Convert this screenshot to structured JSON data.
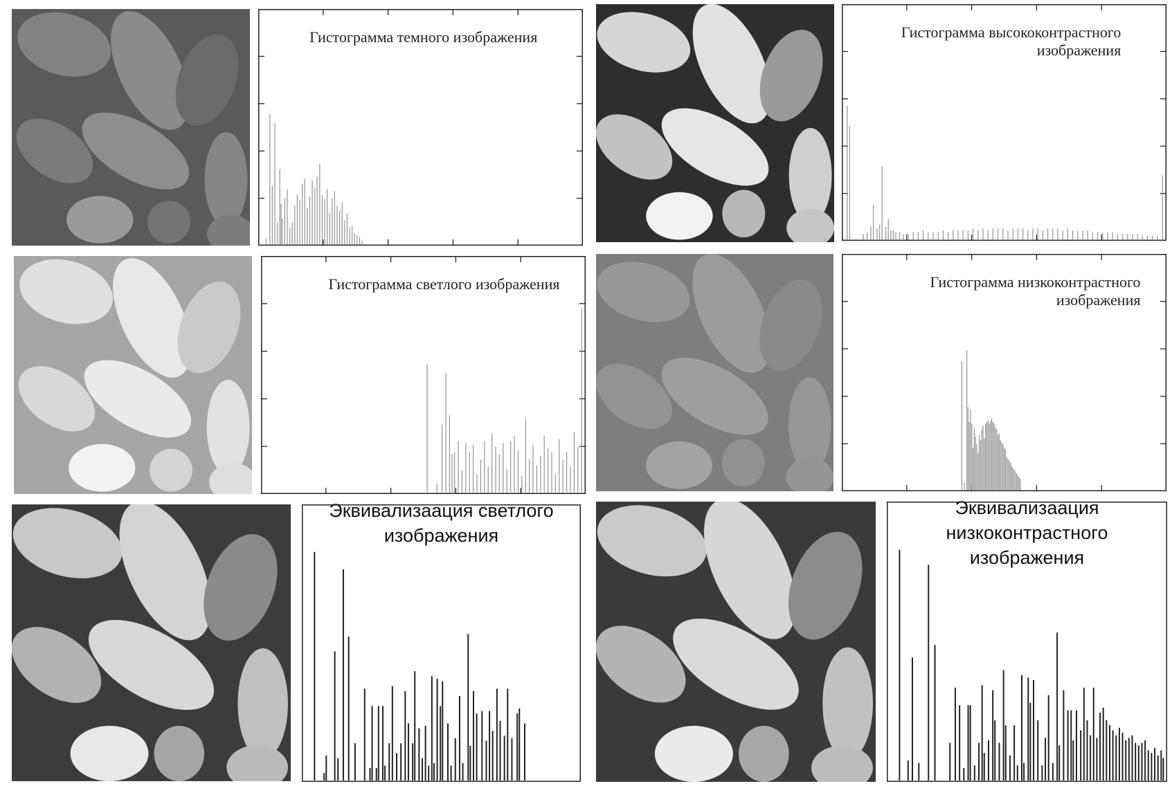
{
  "chart_data": [
    {
      "type": "bar",
      "title": "Гистограмма темного изображения",
      "xlabel": "",
      "ylabel": "",
      "xlim": [
        0,
        255
      ],
      "ylim": [
        0,
        1
      ],
      "tick_count_x": 4,
      "tick_count_y": 4,
      "x": [
        3,
        6,
        8,
        10,
        12,
        14,
        15,
        16,
        18,
        20,
        22,
        24,
        26,
        28,
        30,
        32,
        34,
        36,
        38,
        40,
        42,
        44,
        46,
        48,
        50,
        52,
        54,
        56,
        58,
        60,
        62,
        64,
        66,
        68,
        70,
        72,
        74,
        76,
        78,
        80
      ],
      "values": [
        0.03,
        0.71,
        0.32,
        0.66,
        0.12,
        0.41,
        0.22,
        0.14,
        0.25,
        0.3,
        0.09,
        0.12,
        0.21,
        0.27,
        0.24,
        0.33,
        0.36,
        0.2,
        0.26,
        0.35,
        0.31,
        0.37,
        0.44,
        0.27,
        0.25,
        0.3,
        0.17,
        0.25,
        0.29,
        0.21,
        0.18,
        0.23,
        0.13,
        0.17,
        0.09,
        0.1,
        0.06,
        0.05,
        0.04,
        0.02
      ],
      "color": "#9a9a9a"
    },
    {
      "type": "bar",
      "title": "Гистограмма высококонтрастного изображения",
      "xlabel": "",
      "ylabel": "",
      "xlim": [
        0,
        255
      ],
      "ylim": [
        0,
        1
      ],
      "tick_count_x": 4,
      "tick_count_y": 4,
      "x": [
        1,
        3,
        14,
        17,
        20,
        22,
        25,
        27,
        29,
        32,
        34,
        36,
        38,
        40,
        43,
        46,
        50,
        54,
        58,
        62,
        66,
        70,
        74,
        78,
        82,
        86,
        90,
        94,
        98,
        102,
        106,
        110,
        114,
        118,
        122,
        126,
        130,
        134,
        138,
        142,
        146,
        150,
        154,
        158,
        162,
        166,
        170,
        174,
        178,
        182,
        186,
        190,
        194,
        198,
        202,
        206,
        210,
        214,
        218,
        222,
        226,
        230,
        234,
        238,
        242,
        246,
        250,
        254
      ],
      "values": [
        0.73,
        0.62,
        0.03,
        0.04,
        0.07,
        0.19,
        0.06,
        0.08,
        0.4,
        0.07,
        0.11,
        0.05,
        0.05,
        0.04,
        0.04,
        0.03,
        0.03,
        0.04,
        0.04,
        0.05,
        0.04,
        0.04,
        0.04,
        0.05,
        0.04,
        0.05,
        0.05,
        0.05,
        0.05,
        0.06,
        0.05,
        0.06,
        0.05,
        0.06,
        0.06,
        0.06,
        0.05,
        0.06,
        0.06,
        0.06,
        0.05,
        0.06,
        0.06,
        0.05,
        0.06,
        0.06,
        0.06,
        0.05,
        0.06,
        0.05,
        0.05,
        0.05,
        0.05,
        0.04,
        0.04,
        0.04,
        0.04,
        0.04,
        0.03,
        0.03,
        0.03,
        0.03,
        0.03,
        0.02,
        0.02,
        0.02,
        0.02,
        0.35
      ],
      "color": "#9a9a9a"
    },
    {
      "type": "bar",
      "title": "Гистограмма светлого изображения",
      "xlabel": "",
      "ylabel": "",
      "xlim": [
        0,
        255
      ],
      "ylim": [
        0,
        1
      ],
      "tick_count_x": 4,
      "tick_count_y": 4,
      "x": [
        130,
        138,
        142,
        145,
        148,
        150,
        152,
        155,
        158,
        161,
        164,
        167,
        170,
        173,
        176,
        179,
        182,
        185,
        188,
        191,
        194,
        197,
        200,
        203,
        206,
        209,
        212,
        215,
        218,
        221,
        224,
        227,
        230,
        233,
        236,
        239,
        242,
        245,
        248,
        251,
        254
      ],
      "values": [
        0.7,
        0.05,
        0.37,
        0.65,
        0.42,
        0.21,
        0.22,
        0.28,
        0.12,
        0.27,
        0.22,
        0.26,
        0.1,
        0.18,
        0.28,
        0.14,
        0.32,
        0.25,
        0.21,
        0.27,
        0.13,
        0.28,
        0.31,
        0.23,
        0.09,
        0.4,
        0.18,
        0.26,
        0.15,
        0.2,
        0.31,
        0.24,
        0.22,
        0.1,
        0.29,
        0.18,
        0.22,
        0.14,
        0.33,
        0.25,
        1.0
      ],
      "color": "#9a9a9a"
    },
    {
      "type": "bar",
      "title": "Гистограмма низкоконтрастного изображения",
      "xlabel": "",
      "ylabel": "",
      "xlim": [
        0,
        255
      ],
      "ylim": [
        0,
        1
      ],
      "tick_count_x": 4,
      "tick_count_y": 4,
      "x": [
        93,
        95,
        97,
        98,
        99,
        100,
        101,
        102,
        103,
        104,
        105,
        106,
        107,
        108,
        109,
        110,
        111,
        112,
        113,
        114,
        115,
        116,
        117,
        118,
        119,
        120,
        121,
        122,
        123,
        124,
        125,
        126,
        127,
        128,
        129,
        130,
        131,
        132,
        133,
        134,
        135,
        136,
        137,
        138,
        139,
        140
      ],
      "values": [
        0.7,
        0.04,
        0.76,
        0.45,
        0.37,
        0.44,
        0.36,
        0.23,
        0.34,
        0.29,
        0.25,
        0.2,
        0.3,
        0.27,
        0.33,
        0.35,
        0.28,
        0.36,
        0.37,
        0.38,
        0.36,
        0.38,
        0.39,
        0.37,
        0.36,
        0.34,
        0.33,
        0.3,
        0.31,
        0.27,
        0.26,
        0.25,
        0.23,
        0.22,
        0.18,
        0.17,
        0.16,
        0.15,
        0.13,
        0.12,
        0.11,
        0.1,
        0.09,
        0.08,
        0.07,
        0.06
      ],
      "color": "#9a9a9a"
    },
    {
      "type": "bar",
      "title": "Эквивализаация светлого изображения",
      "xlabel": "",
      "ylabel": "",
      "xlim": [
        0,
        255
      ],
      "ylim": [
        0,
        1
      ],
      "tick_count_x": 0,
      "tick_count_y": 0,
      "x": [
        8,
        17,
        19,
        27,
        30,
        35,
        40,
        46,
        55,
        60,
        62,
        66,
        68,
        72,
        74,
        78,
        81,
        85,
        89,
        93,
        96,
        100,
        102,
        106,
        109,
        112,
        115,
        118,
        120,
        123,
        126,
        128,
        133,
        136,
        140,
        144,
        147,
        152,
        154,
        157,
        160,
        165,
        169,
        172,
        175,
        179,
        182,
        186,
        189,
        193,
        198,
        200,
        205
      ],
      "values": [
        0.92,
        0.03,
        0.1,
        0.52,
        0.09,
        0.85,
        0.58,
        0.15,
        0.37,
        0.05,
        0.3,
        0.05,
        0.3,
        0.3,
        0.06,
        0.15,
        0.38,
        0.11,
        0.15,
        0.36,
        0.23,
        0.15,
        0.44,
        0.21,
        0.09,
        0.22,
        0.06,
        0.42,
        0.07,
        0.41,
        0.3,
        0.4,
        0.23,
        0.06,
        0.17,
        0.34,
        0.07,
        0.59,
        0.14,
        0.36,
        0.27,
        0.28,
        0.16,
        0.28,
        0.2,
        0.37,
        0.24,
        0.18,
        0.37,
        0.17,
        0.27,
        0.29,
        0.23
      ],
      "color": "#222222"
    },
    {
      "type": "bar",
      "title": "Эквивализаация низкоконтрастного изображения",
      "xlabel": "",
      "ylabel": "",
      "xlim": [
        0,
        255
      ],
      "ylim": [
        0,
        1
      ],
      "tick_count_x": 0,
      "tick_count_y": 0,
      "x": [
        8,
        16,
        20,
        26,
        35,
        41,
        55,
        60,
        64,
        68,
        72,
        74,
        78,
        82,
        85,
        87,
        91,
        95,
        97,
        101,
        105,
        107,
        111,
        115,
        118,
        122,
        124,
        128,
        130,
        133,
        137,
        141,
        144,
        147,
        151,
        155,
        157,
        161,
        165,
        168,
        170,
        173,
        177,
        180,
        183,
        186,
        189,
        192,
        195,
        198,
        201,
        204,
        207,
        210,
        213,
        216,
        219,
        222,
        225,
        228,
        231,
        234,
        237,
        240,
        243,
        246,
        249,
        252,
        254
      ],
      "values": [
        0.92,
        0.08,
        0.49,
        0.07,
        0.86,
        0.54,
        0.15,
        0.37,
        0.3,
        0.05,
        0.3,
        0.3,
        0.06,
        0.15,
        0.38,
        0.11,
        0.16,
        0.36,
        0.24,
        0.15,
        0.44,
        0.22,
        0.1,
        0.22,
        0.06,
        0.42,
        0.07,
        0.41,
        0.31,
        0.4,
        0.24,
        0.06,
        0.17,
        0.34,
        0.07,
        0.59,
        0.14,
        0.36,
        0.28,
        0.28,
        0.16,
        0.28,
        0.2,
        0.37,
        0.24,
        0.18,
        0.37,
        0.17,
        0.27,
        0.29,
        0.24,
        0.22,
        0.2,
        0.18,
        0.21,
        0.19,
        0.16,
        0.17,
        0.18,
        0.15,
        0.14,
        0.15,
        0.16,
        0.12,
        0.11,
        0.13,
        0.1,
        0.12,
        0.09
      ],
      "color": "#222222"
    }
  ]
}
